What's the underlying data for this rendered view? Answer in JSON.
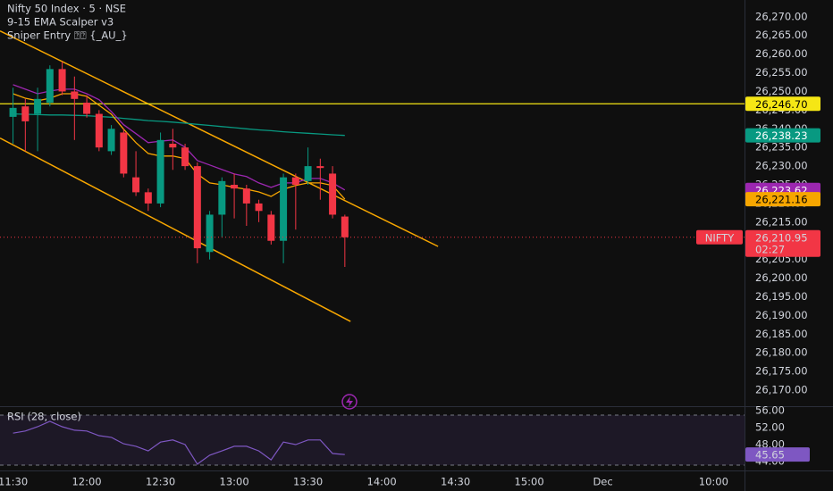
{
  "chart_data": [
    {
      "type": "candlestick",
      "title": "Nifty 50 Index · 5 · NSE",
      "indicators": [
        "9-15 EMA Scalper v3",
        "Sniper Entry ⍰⍰ {_AU_}"
      ],
      "symbol": "NIFTY",
      "countdown": "02:27",
      "up_color": "#089981",
      "down_color": "#f23645",
      "x": [
        135,
        140,
        145,
        150,
        155,
        160,
        165,
        170,
        175,
        180,
        185,
        190,
        195,
        200,
        205,
        210,
        215,
        220,
        225,
        230,
        235,
        240,
        245,
        250,
        255,
        260,
        265,
        270
      ],
      "open": [
        26243.2,
        26246,
        26244,
        26247,
        26256,
        26250,
        26247,
        26244,
        26234,
        26239,
        26227,
        26223,
        26220,
        26236,
        26235,
        26230,
        26207,
        26217,
        26225,
        26224,
        26220,
        26217,
        26210,
        26227,
        26226,
        26230,
        26228,
        26216.5
      ],
      "high": [
        26251,
        26248,
        26251,
        26257,
        26258,
        26254,
        26249,
        26245,
        26241,
        26240,
        26234,
        26224,
        26239,
        26240,
        26236,
        26231,
        26218,
        26227,
        26228,
        26225,
        26221,
        26218,
        26228,
        26228,
        26235,
        26232,
        26230,
        26217
      ],
      "low": [
        26236,
        26234,
        26234,
        26246,
        26249,
        26237,
        26243,
        26234,
        26233,
        26227,
        26222,
        26218,
        26219,
        26229,
        26229,
        26204,
        26205,
        26211,
        26216,
        26214,
        26215,
        26209,
        26204,
        26213,
        26225,
        26221,
        26216,
        26203
      ],
      "close": [
        26245.6,
        26242,
        26248,
        26256,
        26250,
        26248,
        26244,
        26235,
        26240,
        26228,
        26223,
        26220,
        26237,
        26235,
        26230,
        26208,
        26217,
        26226,
        26224,
        26220,
        26218,
        26210,
        26227,
        26225,
        26230,
        26229.5,
        26217,
        26210.95
      ],
      "value_labels": [
        null,
        null,
        null,
        null,
        null,
        null,
        null,
        null,
        null,
        null,
        null,
        null,
        null,
        null,
        null,
        null,
        null,
        null,
        null,
        null,
        null,
        null,
        null,
        null,
        null,
        null,
        null,
        "26,210.95"
      ],
      "series": [
        {
          "color": "#089981",
          "values": [
            26244.0,
            26243.9,
            26243.8,
            26243.7,
            26243.7,
            26243.6,
            26243.5,
            26243.3,
            26243.1,
            26242.8,
            26242.5,
            26242.2,
            26242.0,
            26241.8,
            26241.5,
            26241.2,
            26240.9,
            26240.6,
            26240.3,
            26240.0,
            26239.7,
            26239.5,
            26239.2,
            26239.0,
            26238.8,
            26238.6,
            26238.4,
            26238.23
          ],
          "value_labels": [
            null,
            null,
            null,
            null,
            null,
            null,
            null,
            null,
            null,
            null,
            null,
            null,
            null,
            null,
            null,
            null,
            null,
            null,
            null,
            null,
            null,
            null,
            null,
            null,
            null,
            null,
            null,
            "26,238.23"
          ]
        },
        {
          "color": "#9c27b0",
          "values": [
            26251.8,
            26250.6,
            26249.4,
            26250.1,
            26250.6,
            26250.6,
            26249.4,
            26247.8,
            26244.6,
            26241.1,
            26238.7,
            26236.3,
            26236.7,
            26237.0,
            26235.1,
            26231.5,
            26230.3,
            26229.1,
            26227.9,
            26227.2,
            26225.5,
            26224.3,
            26225.5,
            26225.5,
            26226.7,
            26226.7,
            26225.5,
            26223.62
          ],
          "value_labels": [
            null,
            null,
            null,
            null,
            null,
            null,
            null,
            null,
            null,
            null,
            null,
            null,
            null,
            null,
            null,
            null,
            null,
            null,
            null,
            null,
            null,
            null,
            null,
            null,
            null,
            null,
            null,
            "26,223.62"
          ]
        },
        {
          "color": "#f7a600",
          "values": [
            26249.4,
            26248.2,
            26247.5,
            26248.2,
            26249.4,
            26249.4,
            26248.7,
            26246.3,
            26243.9,
            26239.9,
            26236.3,
            26233.4,
            26232.7,
            26232.7,
            26232.0,
            26227.9,
            26225.5,
            26225.0,
            26224.3,
            26223.8,
            26223.1,
            26221.9,
            26223.8,
            26224.8,
            26225.5,
            26225.5,
            26224.8,
            26221.16
          ],
          "value_labels": [
            null,
            null,
            null,
            null,
            null,
            null,
            null,
            null,
            null,
            null,
            null,
            null,
            null,
            null,
            null,
            null,
            null,
            null,
            null,
            null,
            null,
            null,
            null,
            null,
            null,
            null,
            null,
            "26,221.16"
          ]
        }
      ],
      "hlines": [
        {
          "value": 26246.7,
          "label": "26,246.70",
          "color": "#f5e615"
        }
      ],
      "trendlines": [
        {
          "x": [
            129.7,
            307.9
          ],
          "values": [
            26266.2,
            26208.5
          ],
          "color": "#f7a600"
        },
        {
          "x": [
            129.7,
            272.3
          ],
          "values": [
            26237.5,
            26188.4
          ],
          "color": "#f7a600"
        }
      ],
      "xlim": [
        129.7,
        432.6
      ],
      "ylim": [
        26165.7,
        26274.5
      ],
      "grid": false,
      "yticks": [
        {
          "value": 26270,
          "label": "26,270.00"
        },
        {
          "value": 26265,
          "label": "26,265.00"
        },
        {
          "value": 26260,
          "label": "26,260.00"
        },
        {
          "value": 26255,
          "label": "26,255.00"
        },
        {
          "value": 26250,
          "label": "26,250.00"
        },
        {
          "value": 26245,
          "label": "26,245.00"
        },
        {
          "value": 26240,
          "label": "26,240.00"
        },
        {
          "value": 26235,
          "label": "26,235.00"
        },
        {
          "value": 26230,
          "label": "26,230.00"
        },
        {
          "value": 26225,
          "label": "26,225.00"
        },
        {
          "value": 26220,
          "label": "26,220.00"
        },
        {
          "value": 26215,
          "label": "26,215.00"
        },
        {
          "value": 26210,
          "label": "26,210.00"
        },
        {
          "value": 26205,
          "label": "26,205.00"
        },
        {
          "value": 26200,
          "label": "26,200.00"
        },
        {
          "value": 26195,
          "label": "26,195.00"
        },
        {
          "value": 26190,
          "label": "26,190.00"
        },
        {
          "value": 26185,
          "label": "26,185.00"
        },
        {
          "value": 26180,
          "label": "26,180.00"
        },
        {
          "value": 26175,
          "label": "26,175.00"
        },
        {
          "value": 26170,
          "label": "26,170.00"
        }
      ],
      "xticks": [
        {
          "value": 135,
          "label": "11:30"
        },
        {
          "value": 165,
          "label": "12:00"
        },
        {
          "value": 195,
          "label": "12:30"
        },
        {
          "value": 225,
          "label": "13:00"
        },
        {
          "value": 255,
          "label": "13:30"
        },
        {
          "value": 285,
          "label": "14:00"
        },
        {
          "value": 315,
          "label": "14:30"
        },
        {
          "value": 345,
          "label": "15:00"
        },
        {
          "value": 375,
          "label": "Dec"
        },
        {
          "value": 420,
          "label": "10:00"
        }
      ]
    },
    {
      "type": "line",
      "title": "RSI (28, close)",
      "series": [
        {
          "color": "#7e57c2",
          "values": [
            50.7,
            51.2,
            52.2,
            53.5,
            52.2,
            51.4,
            51.2,
            50.1,
            49.7,
            48.2,
            47.6,
            46.5,
            48.6,
            49.1,
            48.0,
            43.4,
            45.5,
            46.5,
            47.6,
            47.6,
            46.5,
            44.4,
            48.6,
            48.0,
            49.1,
            49.1,
            45.9,
            45.65
          ]
        }
      ],
      "ylim": [
        41.9,
        57.05
      ],
      "yticks": [
        {
          "value": 56,
          "label": "56.00"
        },
        {
          "value": 52,
          "label": "52.00"
        },
        {
          "value": 48,
          "label": "48.00"
        },
        {
          "value": 44,
          "label": "44.00"
        }
      ]
    }
  ]
}
